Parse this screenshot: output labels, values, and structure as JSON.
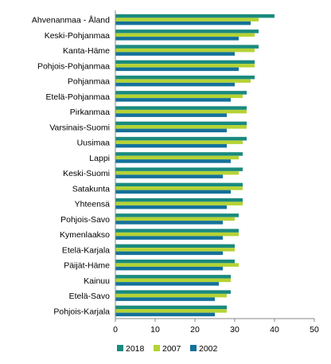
{
  "chart_data": {
    "type": "bar",
    "orientation": "horizontal",
    "categories": [
      "Ahvenanmaa - Åland",
      "Keski-Pohjanmaa",
      "Kanta-Häme",
      "Pohjois-Pohjanmaa",
      "Pohjanmaa",
      "Etelä-Pohjanmaa",
      "Pirkanmaa",
      "Varsinais-Suomi",
      "Uusimaa",
      "Lappi",
      "Keski-Suomi",
      "Satakunta",
      "Yhteensä",
      "Pohjois-Savo",
      "Kymenlaakso",
      "Etelä-Karjala",
      "Päijät-Häme",
      "Kainuu",
      "Etelä-Savo",
      "Pohjois-Karjala"
    ],
    "series": [
      {
        "name": "2018",
        "color": "#1a8a7e",
        "values": [
          40,
          36,
          36,
          35,
          35,
          33,
          33,
          33,
          33,
          32,
          32,
          32,
          32,
          31,
          31,
          30,
          30,
          29,
          29,
          28
        ]
      },
      {
        "name": "2007",
        "color": "#b5d334",
        "values": [
          36,
          35,
          35,
          35,
          34,
          32,
          33,
          33,
          32,
          31,
          31,
          32,
          32,
          30,
          31,
          30,
          31,
          29,
          28,
          28
        ]
      },
      {
        "name": "2002",
        "color": "#14719a",
        "values": [
          34,
          31,
          30,
          31,
          30,
          29,
          28,
          28,
          28,
          29,
          27,
          29,
          28,
          27,
          27,
          27,
          27,
          26,
          25,
          25
        ]
      }
    ],
    "xlim": [
      0,
      50
    ],
    "xticks": [
      0,
      10,
      20,
      30,
      40,
      50
    ],
    "grid": false,
    "legend_position": "bottom"
  }
}
